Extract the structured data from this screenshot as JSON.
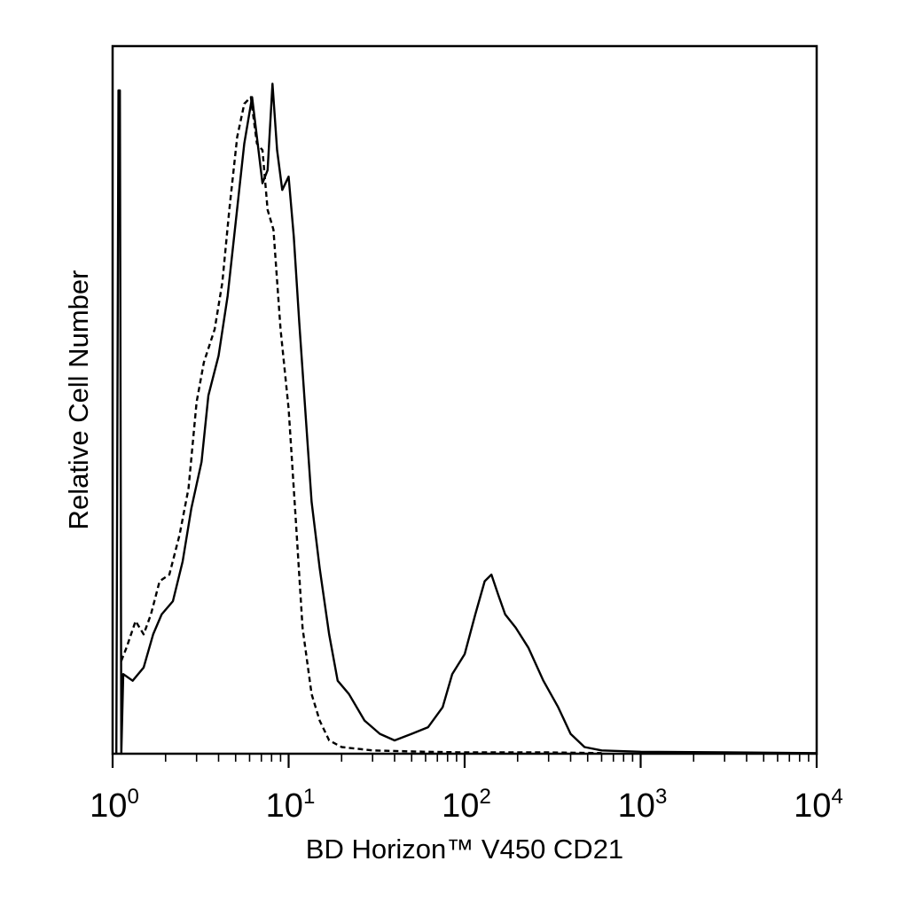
{
  "chart_data": {
    "type": "line",
    "title": "",
    "xlabel": "BD Horizon™ V450 CD21",
    "ylabel": "Relative Cell Number",
    "x_scale": "log",
    "xlim": [
      1,
      10000
    ],
    "ylim": [
      0,
      100
    ],
    "x_ticks": [
      {
        "base": "10",
        "exp": "0"
      },
      {
        "base": "10",
        "exp": "1"
      },
      {
        "base": "10",
        "exp": "2"
      },
      {
        "base": "10",
        "exp": "3"
      },
      {
        "base": "10",
        "exp": "4"
      }
    ],
    "y_ticks": [],
    "grid": false,
    "legend": "none",
    "series": [
      {
        "style": "solid",
        "color": "#000000",
        "points": [
          [
            1.05,
            0
          ],
          [
            1.08,
            100
          ],
          [
            1.1,
            100
          ],
          [
            1.12,
            0
          ],
          [
            1.15,
            12
          ],
          [
            1.3,
            11
          ],
          [
            1.5,
            13
          ],
          [
            1.7,
            18
          ],
          [
            1.9,
            21
          ],
          [
            2.2,
            23
          ],
          [
            2.5,
            29
          ],
          [
            2.8,
            37
          ],
          [
            3.2,
            44
          ],
          [
            3.5,
            54
          ],
          [
            4.0,
            60
          ],
          [
            4.5,
            69
          ],
          [
            5.0,
            80
          ],
          [
            5.6,
            92
          ],
          [
            6.2,
            99
          ],
          [
            6.6,
            93
          ],
          [
            7.1,
            86
          ],
          [
            7.6,
            88
          ],
          [
            8.1,
            101
          ],
          [
            8.6,
            91
          ],
          [
            9.2,
            85
          ],
          [
            10,
            87
          ],
          [
            10.7,
            78
          ],
          [
            11.5,
            65
          ],
          [
            12.5,
            51
          ],
          [
            13.5,
            38
          ],
          [
            15,
            28
          ],
          [
            17,
            18
          ],
          [
            19,
            11
          ],
          [
            22,
            9
          ],
          [
            27,
            5
          ],
          [
            33,
            3
          ],
          [
            40,
            2
          ],
          [
            50,
            3
          ],
          [
            62,
            4
          ],
          [
            75,
            7
          ],
          [
            85,
            12
          ],
          [
            100,
            15
          ],
          [
            115,
            21
          ],
          [
            130,
            26
          ],
          [
            142,
            27
          ],
          [
            155,
            24
          ],
          [
            170,
            21
          ],
          [
            195,
            19
          ],
          [
            230,
            16
          ],
          [
            280,
            11
          ],
          [
            340,
            7
          ],
          [
            400,
            3
          ],
          [
            480,
            1
          ],
          [
            600,
            0.5
          ],
          [
            1000,
            0.3
          ],
          [
            3000,
            0.2
          ],
          [
            10000,
            0.1
          ]
        ]
      },
      {
        "style": "dashed",
        "color": "#000000",
        "points": [
          [
            1.12,
            14
          ],
          [
            1.2,
            16
          ],
          [
            1.35,
            20
          ],
          [
            1.5,
            18
          ],
          [
            1.65,
            21
          ],
          [
            1.85,
            26
          ],
          [
            2.1,
            27
          ],
          [
            2.4,
            33
          ],
          [
            2.7,
            40
          ],
          [
            3.0,
            53
          ],
          [
            3.3,
            59
          ],
          [
            3.8,
            64
          ],
          [
            4.2,
            71
          ],
          [
            4.6,
            82
          ],
          [
            5.1,
            93
          ],
          [
            5.6,
            98
          ],
          [
            6.1,
            99
          ],
          [
            6.6,
            92
          ],
          [
            7.1,
            91
          ],
          [
            7.6,
            82
          ],
          [
            8.2,
            79
          ],
          [
            9.0,
            64
          ],
          [
            10,
            52
          ],
          [
            11,
            35
          ],
          [
            12,
            19
          ],
          [
            13.5,
            9
          ],
          [
            15,
            5
          ],
          [
            17,
            2
          ],
          [
            20,
            1
          ],
          [
            30,
            0.5
          ],
          [
            60,
            0.3
          ],
          [
            100,
            0.2
          ],
          [
            300,
            0.2
          ],
          [
            600,
            0.1
          ]
        ]
      }
    ]
  }
}
